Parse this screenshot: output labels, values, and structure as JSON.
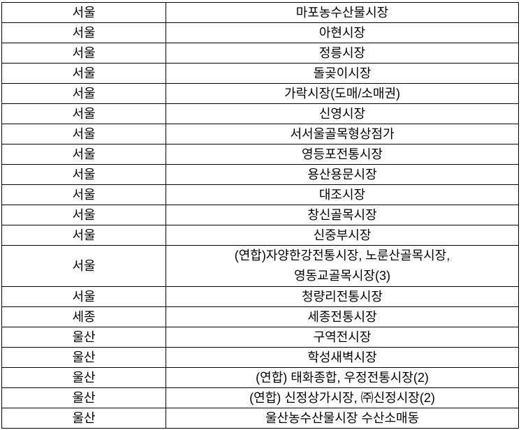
{
  "rows": [
    {
      "region": "서울",
      "market": "마포농수산물시장"
    },
    {
      "region": "서울",
      "market": "아현시장"
    },
    {
      "region": "서울",
      "market": "정릉시장"
    },
    {
      "region": "서울",
      "market": "돌곶이시장"
    },
    {
      "region": "서울",
      "market": "가락시장(도매/소매권)"
    },
    {
      "region": "서울",
      "market": "신영시장"
    },
    {
      "region": "서울",
      "market": "서서울골목형상점가"
    },
    {
      "region": "서울",
      "market": "영등포전통시장"
    },
    {
      "region": "서울",
      "market": "용산용문시장"
    },
    {
      "region": "서울",
      "market": "대조시장"
    },
    {
      "region": "서울",
      "market": "창신골목시장"
    },
    {
      "region": "서울",
      "market": "신중부시장"
    },
    {
      "region": "서울",
      "market": "(연합)자양한강전통시장, 노룬산골목시장,",
      "market_line2": "영동교골목시장(3)"
    },
    {
      "region": "서울",
      "market": "청량리전통시장"
    },
    {
      "region": "세종",
      "market": "세종전통시장"
    },
    {
      "region": "울산",
      "market": "구역전시장"
    },
    {
      "region": "울산",
      "market": "학성새벽시장"
    },
    {
      "region": "울산",
      "market": "(연합) 태화종합, 우정전통시장(2)"
    },
    {
      "region": "울산",
      "market": "(연합) 신정상가시장, ㈜신정시장(2)"
    },
    {
      "region": "울산",
      "market": "울산농수산물시장 수산소매동"
    }
  ]
}
